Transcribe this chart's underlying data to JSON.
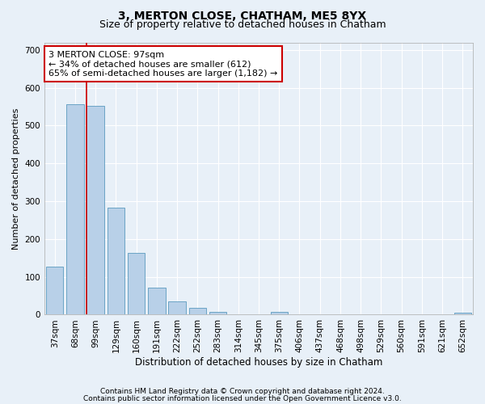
{
  "title": "3, MERTON CLOSE, CHATHAM, ME5 8YX",
  "subtitle": "Size of property relative to detached houses in Chatham",
  "xlabel": "Distribution of detached houses by size in Chatham",
  "ylabel": "Number of detached properties",
  "categories": [
    "37sqm",
    "68sqm",
    "99sqm",
    "129sqm",
    "160sqm",
    "191sqm",
    "222sqm",
    "252sqm",
    "283sqm",
    "314sqm",
    "345sqm",
    "375sqm",
    "406sqm",
    "437sqm",
    "468sqm",
    "498sqm",
    "529sqm",
    "560sqm",
    "591sqm",
    "621sqm",
    "652sqm"
  ],
  "values": [
    128,
    557,
    552,
    282,
    163,
    72,
    35,
    18,
    8,
    0,
    0,
    8,
    0,
    0,
    0,
    0,
    0,
    0,
    0,
    0,
    5
  ],
  "bar_color": "#b8d0e8",
  "bar_edge_color": "#5a9abf",
  "highlight_index": 2,
  "highlight_line_color": "#cc0000",
  "annotation_text": "3 MERTON CLOSE: 97sqm\n← 34% of detached houses are smaller (612)\n65% of semi-detached houses are larger (1,182) →",
  "annotation_box_color": "#ffffff",
  "annotation_box_edge_color": "#cc0000",
  "ylim": [
    0,
    720
  ],
  "yticks": [
    0,
    100,
    200,
    300,
    400,
    500,
    600,
    700
  ],
  "background_color": "#e8f0f8",
  "grid_color": "#ffffff",
  "footer_line1": "Contains HM Land Registry data © Crown copyright and database right 2024.",
  "footer_line2": "Contains public sector information licensed under the Open Government Licence v3.0.",
  "title_fontsize": 10,
  "subtitle_fontsize": 9,
  "xlabel_fontsize": 8.5,
  "ylabel_fontsize": 8,
  "tick_fontsize": 7.5,
  "annotation_fontsize": 8,
  "footer_fontsize": 6.5
}
